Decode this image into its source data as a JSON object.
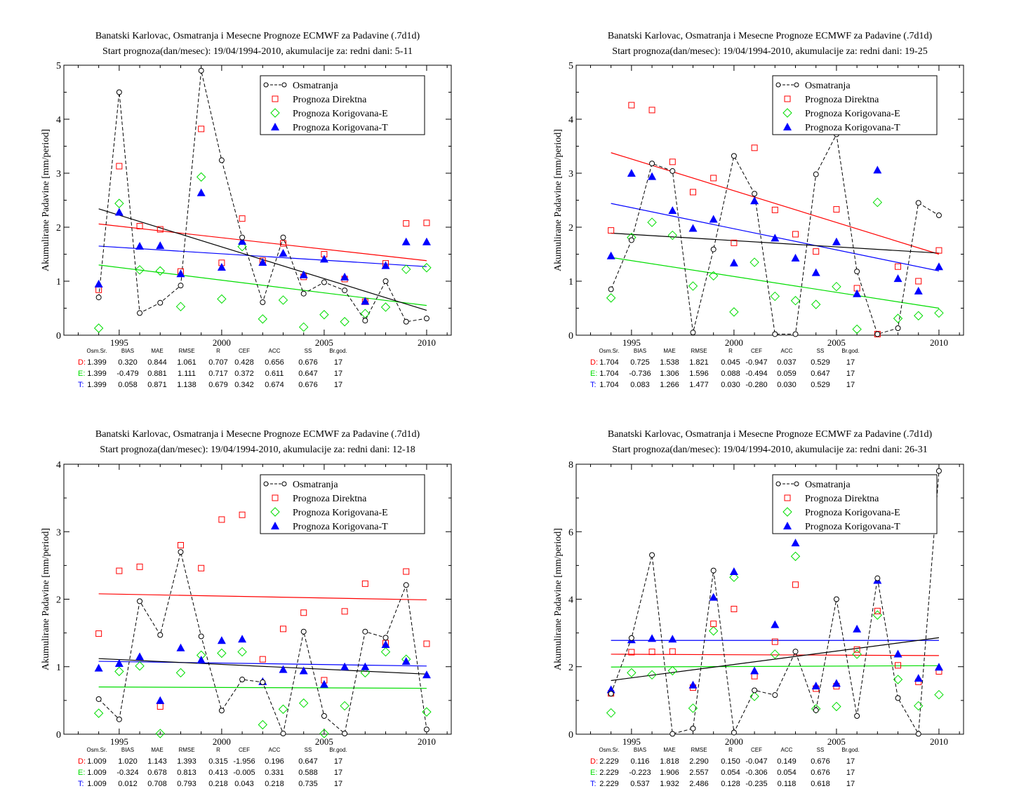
{
  "legend": {
    "osm": "Osmatranja",
    "d": "Prognoza Direktna",
    "e": "Prognoza Korigovana-E",
    "t": "Prognoza Korigovana-T"
  },
  "ylabel": "Akumulirane Padavine [mm/period]",
  "stats_header": [
    "Osm.Sr.",
    "BIAS",
    "MAE",
    "RMSE",
    "R",
    "CEF",
    "ACC",
    "SS",
    "Br.god."
  ],
  "row_labels": [
    "D:",
    "E:",
    "T:"
  ],
  "colors": {
    "osm": "#000000",
    "d": "#ff0000",
    "e": "#00dd00",
    "t": "#0000ff"
  },
  "chart_data": [
    {
      "type": "scatter",
      "title": "Banatski Karlovac, Osmatranja i Mesecne Prognoze ECMWF za Padavine (.7d1d)",
      "subtitle": "Start prognoza(dan/mesec): 19/04/1994-2010, akumulacije za: redni dani: 5-11",
      "ylim": [
        0,
        5
      ],
      "yticks": [
        "0",
        "1",
        "2",
        "3",
        "4",
        "5"
      ],
      "xlim": [
        1992.3,
        2011.2
      ],
      "xticks": [
        "1995",
        "2000",
        "2005",
        "2010"
      ],
      "years": [
        1994,
        1995,
        1996,
        1997,
        1998,
        1999,
        2000,
        2001,
        2002,
        2003,
        2004,
        2005,
        2006,
        2007,
        2008,
        2009,
        2010
      ],
      "series": [
        {
          "key": "osm",
          "name": "Osmatranja",
          "values": [
            0.7,
            4.5,
            0.41,
            0.6,
            0.92,
            4.9,
            3.24,
            1.81,
            0.61,
            1.81,
            0.77,
            0.98,
            0.83,
            0.27,
            1.0,
            0.25,
            0.31
          ]
        },
        {
          "key": "d",
          "name": "Prognoza Direktna",
          "values": [
            0.84,
            3.13,
            2.02,
            1.96,
            1.18,
            3.82,
            1.34,
            2.16,
            1.38,
            1.7,
            1.08,
            1.5,
            1.04,
            0.62,
            1.33,
            2.07,
            2.08
          ]
        },
        {
          "key": "e",
          "name": "Prognoza Korigovana-E",
          "values": [
            0.13,
            2.44,
            1.21,
            1.19,
            0.53,
            2.93,
            0.67,
            1.64,
            0.3,
            0.65,
            0.15,
            0.38,
            0.25,
            0.4,
            0.52,
            1.22,
            1.25
          ]
        },
        {
          "key": "t",
          "name": "Prognoza Korigovana-T",
          "values": [
            0.95,
            2.28,
            1.65,
            1.66,
            1.14,
            2.64,
            1.26,
            1.74,
            1.35,
            1.52,
            1.12,
            1.41,
            1.08,
            0.63,
            1.29,
            1.73,
            1.73
          ]
        }
      ],
      "trends": {
        "osm": [
          [
            1994,
            2.34
          ],
          [
            2010,
            0.46
          ]
        ],
        "d": [
          [
            1994,
            2.06
          ],
          [
            2010,
            1.38
          ]
        ],
        "e": [
          [
            1994,
            1.3
          ],
          [
            2010,
            0.55
          ]
        ],
        "t": [
          [
            1994,
            1.65
          ],
          [
            2010,
            1.27
          ]
        ]
      },
      "stats": [
        [
          "1.399",
          "0.320",
          "0.844",
          "1.061",
          "0.707",
          "0.428",
          "0.656",
          "0.676",
          "17"
        ],
        [
          "1.399",
          "-0.479",
          "0.881",
          "1.111",
          "0.717",
          "0.372",
          "0.611",
          "0.647",
          "17"
        ],
        [
          "1.399",
          "0.058",
          "0.871",
          "1.138",
          "0.679",
          "0.342",
          "0.674",
          "0.676",
          "17"
        ]
      ]
    },
    {
      "type": "scatter",
      "title": "Banatski Karlovac, Osmatranja i Mesecne Prognoze ECMWF za Padavine (.7d1d)",
      "subtitle": "Start prognoza(dan/mesec): 19/04/1994-2010, akumulacije za: redni dani: 19-25",
      "ylim": [
        0,
        5
      ],
      "yticks": [
        "0",
        "1",
        "2",
        "3",
        "4",
        "5"
      ],
      "xlim": [
        1992.3,
        2011.2
      ],
      "xticks": [
        "1995",
        "2000",
        "2005",
        "2010"
      ],
      "years": [
        1994,
        1995,
        1996,
        1997,
        1998,
        1999,
        2000,
        2001,
        2002,
        2003,
        2004,
        2005,
        2006,
        2007,
        2008,
        2009,
        2010
      ],
      "series": [
        {
          "key": "osm",
          "name": "Osmatranja",
          "values": [
            0.85,
            1.76,
            3.18,
            3.04,
            0.05,
            1.59,
            3.32,
            2.62,
            0.02,
            0.02,
            2.98,
            3.72,
            1.18,
            0.02,
            0.13,
            2.45,
            2.22
          ]
        },
        {
          "key": "d",
          "name": "Prognoza Direktna",
          "values": [
            1.94,
            4.26,
            4.17,
            3.21,
            2.65,
            2.91,
            1.71,
            3.47,
            2.32,
            1.87,
            1.55,
            2.33,
            0.87,
            0.02,
            1.27,
            1.0,
            1.57
          ]
        },
        {
          "key": "e",
          "name": "Prognoza Korigovana-E",
          "values": [
            0.69,
            1.81,
            2.09,
            1.85,
            0.91,
            1.1,
            0.43,
            1.35,
            0.72,
            0.64,
            0.57,
            0.9,
            0.11,
            2.46,
            0.31,
            0.36,
            0.41
          ]
        },
        {
          "key": "t",
          "name": "Prognoza Korigovana-T",
          "values": [
            1.47,
            3.0,
            2.94,
            2.31,
            1.98,
            2.15,
            1.34,
            2.49,
            1.8,
            1.43,
            1.16,
            1.73,
            0.77,
            3.06,
            1.05,
            0.82,
            1.27
          ]
        }
      ],
      "trends": {
        "osm": [
          [
            1994,
            1.89
          ],
          [
            2010,
            1.52
          ]
        ],
        "d": [
          [
            1994,
            3.38
          ],
          [
            2010,
            1.5
          ]
        ],
        "e": [
          [
            1994,
            1.44
          ],
          [
            2010,
            0.5
          ]
        ],
        "t": [
          [
            1994,
            2.44
          ],
          [
            2010,
            1.19
          ]
        ]
      },
      "stats": [
        [
          "1.704",
          "0.725",
          "1.538",
          "1.821",
          "0.045",
          "-0.947",
          "0.037",
          "0.529",
          "17"
        ],
        [
          "1.704",
          "-0.736",
          "1.306",
          "1.596",
          "0.088",
          "-0.494",
          "0.059",
          "0.647",
          "17"
        ],
        [
          "1.704",
          "0.083",
          "1.266",
          "1.477",
          "0.030",
          "-0.280",
          "0.030",
          "0.529",
          "17"
        ]
      ]
    },
    {
      "type": "scatter",
      "title": "Banatski Karlovac, Osmatranja i Mesecne Prognoze ECMWF za Padavine (.7d1d)",
      "subtitle": "Start prognoza(dan/mesec): 19/04/1994-2010, akumulacije za: redni dani: 12-18",
      "ylim": [
        0,
        4
      ],
      "yticks": [
        "0",
        "1",
        "2",
        "3",
        "4"
      ],
      "xlim": [
        1992.3,
        2011.2
      ],
      "xticks": [
        "1995",
        "2000",
        "2005",
        "2010"
      ],
      "years": [
        1994,
        1995,
        1996,
        1997,
        1998,
        1999,
        2000,
        2001,
        2002,
        2003,
        2004,
        2005,
        2006,
        2007,
        2008,
        2009,
        2010
      ],
      "series": [
        {
          "key": "osm",
          "name": "Osmatranja",
          "values": [
            0.52,
            0.22,
            1.97,
            1.47,
            2.7,
            1.45,
            0.35,
            0.81,
            0.77,
            0.01,
            1.52,
            0.27,
            0.01,
            1.52,
            1.43,
            2.21,
            0.07
          ]
        },
        {
          "key": "d",
          "name": "Prognoza Direktna",
          "values": [
            1.49,
            2.42,
            2.48,
            0.41,
            2.8,
            2.46,
            3.18,
            3.25,
            1.11,
            1.56,
            1.8,
            0.8,
            1.82,
            2.23,
            1.35,
            2.41,
            1.34
          ]
        },
        {
          "key": "e",
          "name": "Prognoza Korigovana-E",
          "values": [
            0.31,
            0.93,
            1.01,
            0.01,
            0.91,
            1.17,
            1.2,
            1.22,
            0.14,
            0.37,
            0.46,
            0.01,
            0.42,
            0.91,
            1.22,
            1.11,
            0.33
          ]
        },
        {
          "key": "t",
          "name": "Prognoza Korigovana-T",
          "values": [
            0.98,
            1.05,
            1.15,
            0.5,
            1.28,
            1.1,
            1.39,
            1.41,
            0.78,
            0.96,
            0.94,
            0.74,
            1.0,
            1.0,
            1.33,
            1.08,
            0.88
          ]
        }
      ],
      "trends": {
        "osm": [
          [
            1994,
            1.12
          ],
          [
            2010,
            0.89
          ]
        ],
        "d": [
          [
            1994,
            2.08
          ],
          [
            2010,
            1.99
          ]
        ],
        "e": [
          [
            1994,
            0.7
          ],
          [
            2010,
            0.68
          ]
        ],
        "t": [
          [
            1994,
            1.08
          ],
          [
            2010,
            1.01
          ]
        ]
      },
      "stats": [
        [
          "1.009",
          "1.020",
          "1.143",
          "1.393",
          "0.315",
          "-1.956",
          "0.196",
          "0.647",
          "17"
        ],
        [
          "1.009",
          "-0.324",
          "0.678",
          "0.813",
          "0.413",
          "-0.005",
          "0.331",
          "0.588",
          "17"
        ],
        [
          "1.009",
          "0.012",
          "0.708",
          "0.793",
          "0.218",
          "0.043",
          "0.218",
          "0.735",
          "17"
        ]
      ]
    },
    {
      "type": "scatter",
      "title": "Banatski Karlovac, Osmatranja i Mesecne Prognoze ECMWF za Padavine (.7d1d)",
      "subtitle": "Start prognoza(dan/mesec): 19/04/1994-2010, akumulacije za: redni dani: 26-31",
      "ylim": [
        0,
        8
      ],
      "yticks": [
        "0",
        "2",
        "4",
        "6",
        "8"
      ],
      "xlim": [
        1992.3,
        2011.2
      ],
      "xticks": [
        "1995",
        "2000",
        "2005",
        "2010"
      ],
      "years": [
        1994,
        1995,
        1996,
        1997,
        1998,
        1999,
        2000,
        2001,
        2002,
        2003,
        2004,
        2005,
        2006,
        2007,
        2008,
        2009,
        2010
      ],
      "series": [
        {
          "key": "osm",
          "name": "Osmatranja",
          "values": [
            1.2,
            2.85,
            5.31,
            0.01,
            0.17,
            4.85,
            0.05,
            1.3,
            1.16,
            2.45,
            0.71,
            4.0,
            0.54,
            4.62,
            1.07,
            0.01,
            7.8
          ]
        },
        {
          "key": "d",
          "name": "Prognoza Direktna",
          "values": [
            1.21,
            2.43,
            2.44,
            2.45,
            1.38,
            3.27,
            3.71,
            1.72,
            2.74,
            4.43,
            1.35,
            1.42,
            2.51,
            3.65,
            2.04,
            1.55,
            1.86
          ]
        },
        {
          "key": "e",
          "name": "Prognoza Korigovana-E",
          "values": [
            0.63,
            1.82,
            1.76,
            1.88,
            0.77,
            3.06,
            4.65,
            1.12,
            2.37,
            5.27,
            0.75,
            0.82,
            2.37,
            3.53,
            1.62,
            0.84,
            1.17
          ]
        },
        {
          "key": "t",
          "name": "Prognoza Korigovana-T",
          "values": [
            1.32,
            2.8,
            2.84,
            2.82,
            1.46,
            4.06,
            4.82,
            1.88,
            3.25,
            5.67,
            1.43,
            1.51,
            3.12,
            4.56,
            2.38,
            1.66,
            1.99
          ]
        }
      ],
      "trends": {
        "osm": [
          [
            1994,
            1.59
          ],
          [
            2010,
            2.86
          ]
        ],
        "d": [
          [
            1994,
            2.37
          ],
          [
            2010,
            2.33
          ]
        ],
        "e": [
          [
            1994,
            1.99
          ],
          [
            2010,
            2.03
          ]
        ],
        "t": [
          [
            1994,
            2.78
          ],
          [
            2010,
            2.78
          ]
        ]
      },
      "stats": [
        [
          "2.229",
          "0.116",
          "1.818",
          "2.290",
          "0.150",
          "-0.047",
          "0.149",
          "0.676",
          "17"
        ],
        [
          "2.229",
          "-0.223",
          "1.906",
          "2.557",
          "0.054",
          "-0.306",
          "0.054",
          "0.676",
          "17"
        ],
        [
          "2.229",
          "0.537",
          "1.932",
          "2.486",
          "0.128",
          "-0.235",
          "0.118",
          "0.618",
          "17"
        ]
      ]
    }
  ]
}
